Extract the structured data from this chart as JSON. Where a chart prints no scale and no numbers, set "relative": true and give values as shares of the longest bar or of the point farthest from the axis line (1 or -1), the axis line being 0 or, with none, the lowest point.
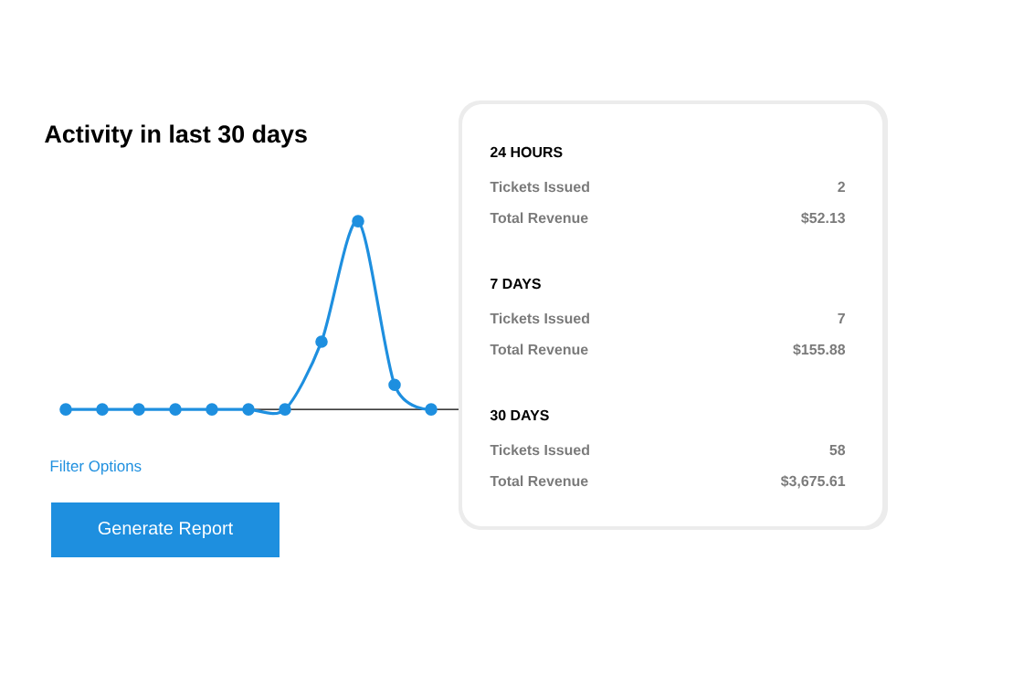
{
  "chart_data": [
    {
      "type": "line",
      "title": "Activity in last 30 days",
      "relative": true,
      "marker": "circle",
      "categories": [
        null,
        null,
        null,
        null,
        null,
        null,
        null,
        null,
        null,
        null,
        null
      ],
      "series": [
        {
          "color": "#1e8fdf",
          "values": [
            0,
            0,
            0,
            0,
            0,
            0,
            0,
            0.36,
            1,
            0.13,
            0
          ]
        }
      ],
      "annotations": [
        "Filter Options",
        "Generate Report"
      ]
    },
    {
      "type": "other",
      "annotations": [
        "24 HOURS",
        "Tickets Issued",
        "2",
        "Total Revenue",
        "$52.13",
        "7 DAYS",
        "Tickets Issued",
        "7",
        "Total Revenue",
        "$155.88",
        "30 DAYS",
        "Tickets Issued",
        "58",
        "Total Revenue",
        "$3,675.61"
      ]
    }
  ]
}
